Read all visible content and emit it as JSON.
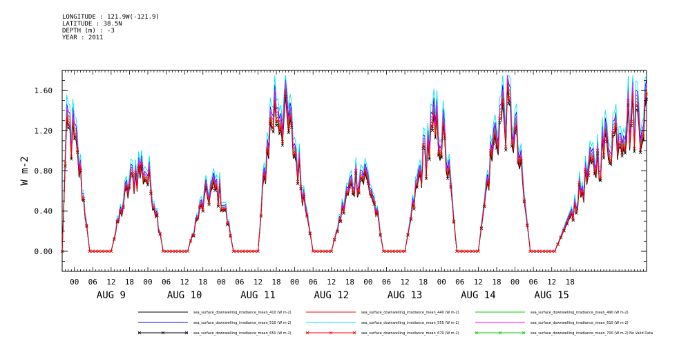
{
  "header": {
    "longitude": "LONGITUDE : 121.9W(-121.9)",
    "latitude": "LATITUDE : 38.5N",
    "depth": "DEPTH (m) : -3",
    "year": "YEAR : 2011"
  },
  "chart_data": {
    "type": "line",
    "xlabel": "",
    "ylabel": "W m-2",
    "ylim": [
      -0.2,
      1.8
    ],
    "yticks": [
      0.0,
      0.4,
      0.8,
      1.2,
      1.6
    ],
    "ytick_labels": [
      "0.00",
      "0.40",
      "0.80",
      "1.20",
      "1.60"
    ],
    "x_start_hour": -4,
    "x_end_hour": 187,
    "xtick_labels": [
      "00",
      "06",
      "12",
      "18",
      "00",
      "06",
      "12",
      "18",
      "00",
      "06",
      "12",
      "18",
      "00",
      "06",
      "12",
      "18",
      "00",
      "06",
      "12",
      "18",
      "00",
      "06",
      "12",
      "18",
      "00",
      "06",
      "12",
      "18"
    ],
    "xtick_hours": [
      0,
      6,
      12,
      18,
      24,
      30,
      36,
      42,
      48,
      54,
      60,
      66,
      72,
      78,
      84,
      90,
      96,
      102,
      108,
      114,
      120,
      126,
      132,
      138,
      144,
      150,
      156,
      162
    ],
    "day_labels": [
      "AUG  9",
      "AUG 10",
      "AUG 11",
      "AUG 12",
      "AUG 13",
      "AUG 14",
      "AUG 15"
    ],
    "day_label_hours": [
      12,
      36,
      60,
      84,
      108,
      132,
      156
    ],
    "grid": false,
    "legend_position": "bottom",
    "daily_peaks": [
      {
        "start_hour": -4,
        "peak_hour": -2,
        "end_hour": 5,
        "peak": 1.25
      },
      {
        "start_hour": 12,
        "peak_hour": 22,
        "end_hour": 29,
        "peak": 0.85
      },
      {
        "start_hour": 37,
        "peak_hour": 46,
        "end_hour": 52,
        "peak": 0.65
      },
      {
        "start_hour": 60,
        "peak_hour": 66,
        "end_hour": 78,
        "peak": 1.5
      },
      {
        "start_hour": 84,
        "peak_hour": 94,
        "end_hour": 101,
        "peak": 0.8
      },
      {
        "start_hour": 108,
        "peak_hour": 119,
        "end_hour": 125,
        "peak": 1.25
      },
      {
        "start_hour": 132,
        "peak_hour": 141,
        "end_hour": 149,
        "peak": 1.45
      },
      {
        "start_hour": 157,
        "peak_hour": 187,
        "end_hour": 188,
        "peak": 1.45
      }
    ],
    "series": [
      {
        "name": "sea_surface_downwelling_irradiance_mean_410 (W m-2)",
        "color": "#000000",
        "scale": 0.92,
        "marker": "none"
      },
      {
        "name": "sea_surface_downwelling_irradiance_mean_440 (W m-2)",
        "color": "#ff0000",
        "scale": 0.95,
        "marker": "none"
      },
      {
        "name": "sea_surface_downwelling_irradiance_mean_490 (W m-2)",
        "color": "#00cc00",
        "scale": 0.97,
        "marker": "none"
      },
      {
        "name": "sea_surface_downwelling_irradiance_mean_510 (W m-2)",
        "color": "#0000ff",
        "scale": 1.02,
        "marker": "none"
      },
      {
        "name": "sea_surface_downwelling_irradiance_mean_555 (W m-2)",
        "color": "#00e5ee",
        "scale": 1.08,
        "marker": "none"
      },
      {
        "name": "sea_surface_downwelling_irradiance_mean_610 (W m-2)",
        "color": "#ff00ff",
        "scale": 0.99,
        "marker": "none"
      },
      {
        "name": "sea_surface_downwelling_irradiance_mean_650 (W m-2)",
        "color": "#000000",
        "scale": 0.9,
        "marker": "x"
      },
      {
        "name": "sea_surface_downwelling_irradiance_mean_670 (W m-2)",
        "color": "#ff0000",
        "scale": 0.93,
        "marker": "x"
      },
      {
        "name": "sea_surface_downwelling_irradiance_mean_700 (W m-2) No Valid Data",
        "color": "#00cc00",
        "scale": 0,
        "marker": "x"
      }
    ]
  }
}
